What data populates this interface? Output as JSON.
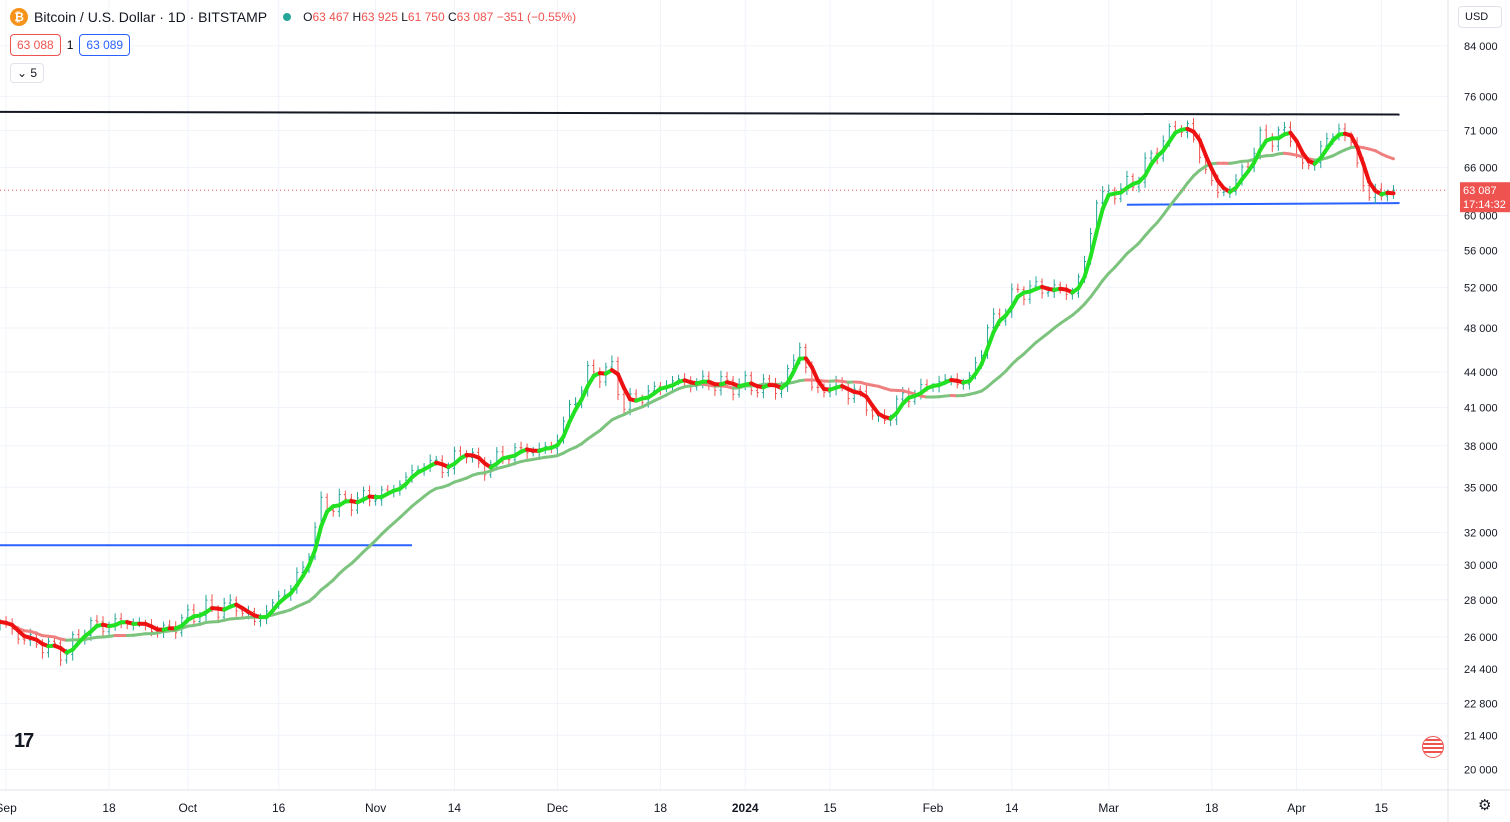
{
  "header": {
    "coin_icon_glyph": "₿",
    "title": "Bitcoin / U.S. Dollar · 1D · BITSTAMP",
    "open_label": "O",
    "open": "63 467",
    "high_label": "H",
    "high": "63 925",
    "low_label": "L",
    "low": "61 750",
    "close_label": "C",
    "close": "63 087",
    "change": "−351 (−0.55%)",
    "status_color": "#26a69a"
  },
  "quote": {
    "sell": "63 088",
    "spread": "1",
    "buy": "63 089"
  },
  "volume_toggle": {
    "label": "5"
  },
  "currency_button": {
    "label": "USD"
  },
  "price_label": {
    "value": "63 087",
    "countdown": "17:14:32"
  },
  "colors": {
    "up": "#26a69a",
    "down": "#ef5350",
    "fast_up": "#22e022",
    "fast_down": "#ee1111",
    "slow_up": "#7cc47e",
    "slow_down": "#f08080",
    "hline": "#2962ff"
  },
  "chart_data": {
    "type": "candlestick",
    "scale": "log",
    "ylim": [
      19200,
      92000
    ],
    "yticks": [
      84000,
      76000,
      71000,
      66000,
      60000,
      56000,
      52000,
      48000,
      44000,
      41000,
      38000,
      35000,
      32000,
      30000,
      28000,
      26000,
      24400,
      22800,
      21400,
      20000
    ],
    "yticks_display": [
      "84 000",
      "76 000",
      "71 000",
      "66 000",
      "60 000",
      "56 000",
      "52 000",
      "48 000",
      "44 000",
      "41 000",
      "38 000",
      "35 000",
      "32 000",
      "30 000",
      "28 000",
      "26 000",
      "24 400",
      "22 800",
      "21 400",
      "20 000"
    ],
    "x_start": "2023-08-31",
    "x_end": "2024-04-26",
    "xticks": [
      {
        "date": "2023-09-01",
        "label": "Sep"
      },
      {
        "date": "2023-09-18",
        "label": "18"
      },
      {
        "date": "2023-10-01",
        "label": "Oct"
      },
      {
        "date": "2023-10-16",
        "label": "16"
      },
      {
        "date": "2023-11-01",
        "label": "Nov"
      },
      {
        "date": "2023-11-14",
        "label": "14"
      },
      {
        "date": "2023-12-01",
        "label": "Dec"
      },
      {
        "date": "2023-12-18",
        "label": "18"
      },
      {
        "date": "2024-01-01",
        "label": "2024"
      },
      {
        "date": "2024-01-15",
        "label": "15"
      },
      {
        "date": "2024-02-01",
        "label": "Feb"
      },
      {
        "date": "2024-02-14",
        "label": "14"
      },
      {
        "date": "2024-03-01",
        "label": "Mar"
      },
      {
        "date": "2024-03-18",
        "label": "18"
      },
      {
        "date": "2024-04-01",
        "label": "Apr"
      },
      {
        "date": "2024-04-15",
        "label": "15"
      }
    ],
    "grid": true,
    "last_price": 63087,
    "price_anchors": [
      [
        "2023-08-31",
        26800
      ],
      [
        "2023-09-04",
        25900
      ],
      [
        "2023-09-11",
        25200
      ],
      [
        "2023-09-14",
        26500
      ],
      [
        "2023-09-21",
        26800
      ],
      [
        "2023-09-27",
        26300
      ],
      [
        "2023-10-03",
        27400
      ],
      [
        "2023-10-09",
        27700
      ],
      [
        "2023-10-12",
        26800
      ],
      [
        "2023-10-17",
        28400
      ],
      [
        "2023-10-20",
        29700
      ],
      [
        "2023-10-23",
        33700
      ],
      [
        "2023-10-27",
        34000
      ],
      [
        "2023-11-03",
        34600
      ],
      [
        "2023-11-09",
        36700
      ],
      [
        "2023-11-13",
        36500
      ],
      [
        "2023-11-16",
        37800
      ],
      [
        "2023-11-18",
        36300
      ],
      [
        "2023-11-24",
        37600
      ],
      [
        "2023-11-30",
        37800
      ],
      [
        "2023-12-04",
        41800
      ],
      [
        "2023-12-06",
        43800
      ],
      [
        "2023-12-10",
        44200
      ],
      [
        "2023-12-12",
        41200
      ],
      [
        "2023-12-20",
        43200
      ],
      [
        "2023-12-27",
        43000
      ],
      [
        "2024-01-03",
        42800
      ],
      [
        "2024-01-07",
        42700
      ],
      [
        "2024-01-10",
        46400
      ],
      [
        "2024-01-12",
        42500
      ],
      [
        "2024-01-17",
        42700
      ],
      [
        "2024-01-21",
        41500
      ],
      [
        "2024-01-23",
        39600
      ],
      [
        "2024-01-27",
        41800
      ],
      [
        "2024-02-02",
        43200
      ],
      [
        "2024-02-07",
        43200
      ],
      [
        "2024-02-10",
        47800
      ],
      [
        "2024-02-15",
        51700
      ],
      [
        "2024-02-19",
        52000
      ],
      [
        "2024-02-24",
        51500
      ],
      [
        "2024-02-26",
        54500
      ],
      [
        "2024-02-28",
        62000
      ],
      [
        "2024-03-05",
        64000
      ],
      [
        "2024-03-09",
        68500
      ],
      [
        "2024-03-12",
        71500
      ],
      [
        "2024-03-14",
        71400
      ],
      [
        "2024-03-19",
        62500
      ],
      [
        "2024-03-22",
        64000
      ],
      [
        "2024-03-26",
        69800
      ],
      [
        "2024-03-31",
        70700
      ],
      [
        "2024-04-02",
        65500
      ],
      [
        "2024-04-08",
        71500
      ],
      [
        "2024-04-10",
        69000
      ],
      [
        "2024-04-13",
        62000
      ],
      [
        "2024-04-16",
        63400
      ],
      [
        "2024-04-17",
        63087
      ]
    ],
    "series": [
      {
        "name": "",
        "kind": "fast_ma",
        "period": 3
      },
      {
        "name": "",
        "kind": "slow_ma",
        "period": 20
      }
    ],
    "lines": [
      {
        "name": "",
        "color": "#131722",
        "points": [
          [
            "2023-08-31",
            73700
          ],
          [
            "2024-04-18",
            73300
          ]
        ]
      },
      {
        "name": "",
        "color": "#2962ff",
        "points": [
          [
            "2023-08-31",
            31200
          ],
          [
            "2023-11-07",
            31200
          ]
        ]
      },
      {
        "name": "",
        "color": "#2962ff",
        "points": [
          [
            "2024-03-04",
            61300
          ],
          [
            "2024-04-18",
            61500
          ]
        ]
      }
    ]
  }
}
